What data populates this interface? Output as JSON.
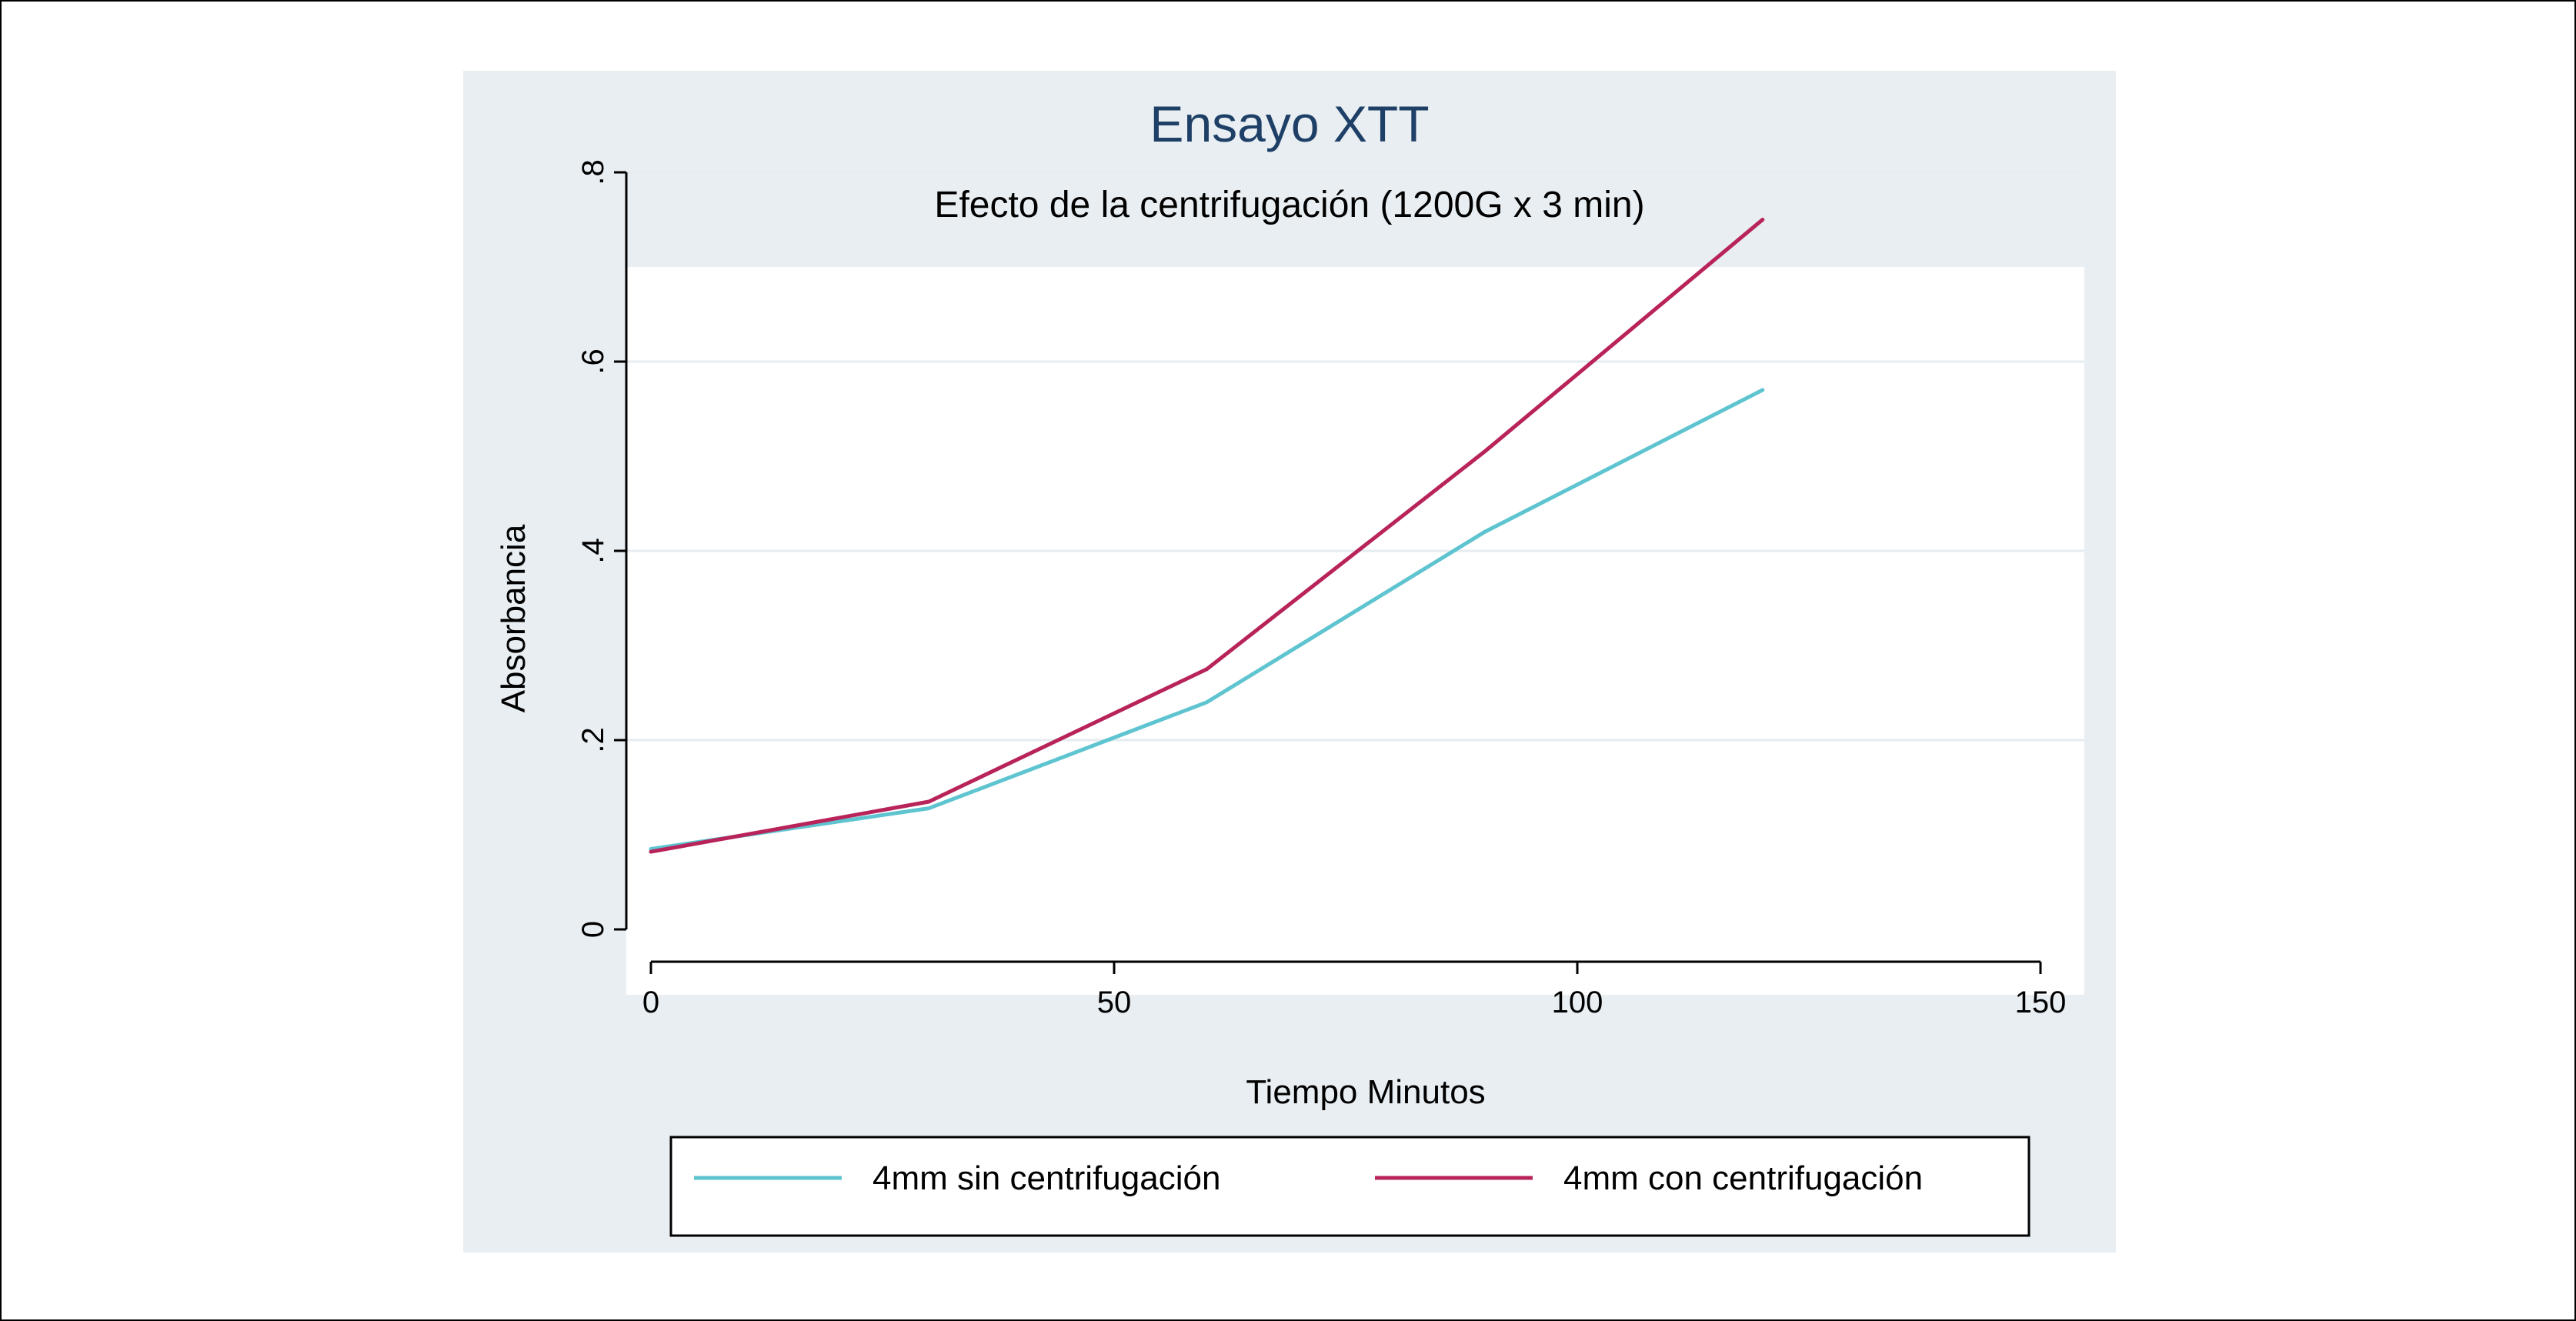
{
  "chart_data": {
    "type": "line",
    "title": "Ensayo XTT",
    "subtitle": "Efecto de la centrifugación (1200G x 3 min)",
    "xlabel": "Tiempo Minutos",
    "ylabel": "Absorbancia",
    "xlim": [
      0,
      150
    ],
    "ylim": [
      0,
      0.8
    ],
    "x_ticks": [
      0,
      50,
      100,
      150
    ],
    "x_tick_labels": [
      "0",
      "50",
      "100",
      "150"
    ],
    "y_ticks": [
      0,
      0.2,
      0.4,
      0.6,
      0.8
    ],
    "y_tick_labels": [
      "0",
      ".2",
      ".4",
      ".6",
      ".8"
    ],
    "grid": true,
    "legend_position": "bottom",
    "series": [
      {
        "name": "4mm sin centrifugación",
        "color": "#5ec4d0",
        "x": [
          0,
          30,
          60,
          90,
          120
        ],
        "y": [
          0.085,
          0.128,
          0.24,
          0.42,
          0.57
        ]
      },
      {
        "name": "4mm con centrifugación",
        "color": "#b8235a",
        "x": [
          0,
          30,
          60,
          90,
          120
        ],
        "y": [
          0.082,
          0.135,
          0.275,
          0.505,
          0.75
        ]
      }
    ],
    "colors": {
      "panel_background": "#e8eef2",
      "plot_background": "#ffffff",
      "gridline": "#e6ecf0",
      "title": "#1e3f66"
    }
  }
}
